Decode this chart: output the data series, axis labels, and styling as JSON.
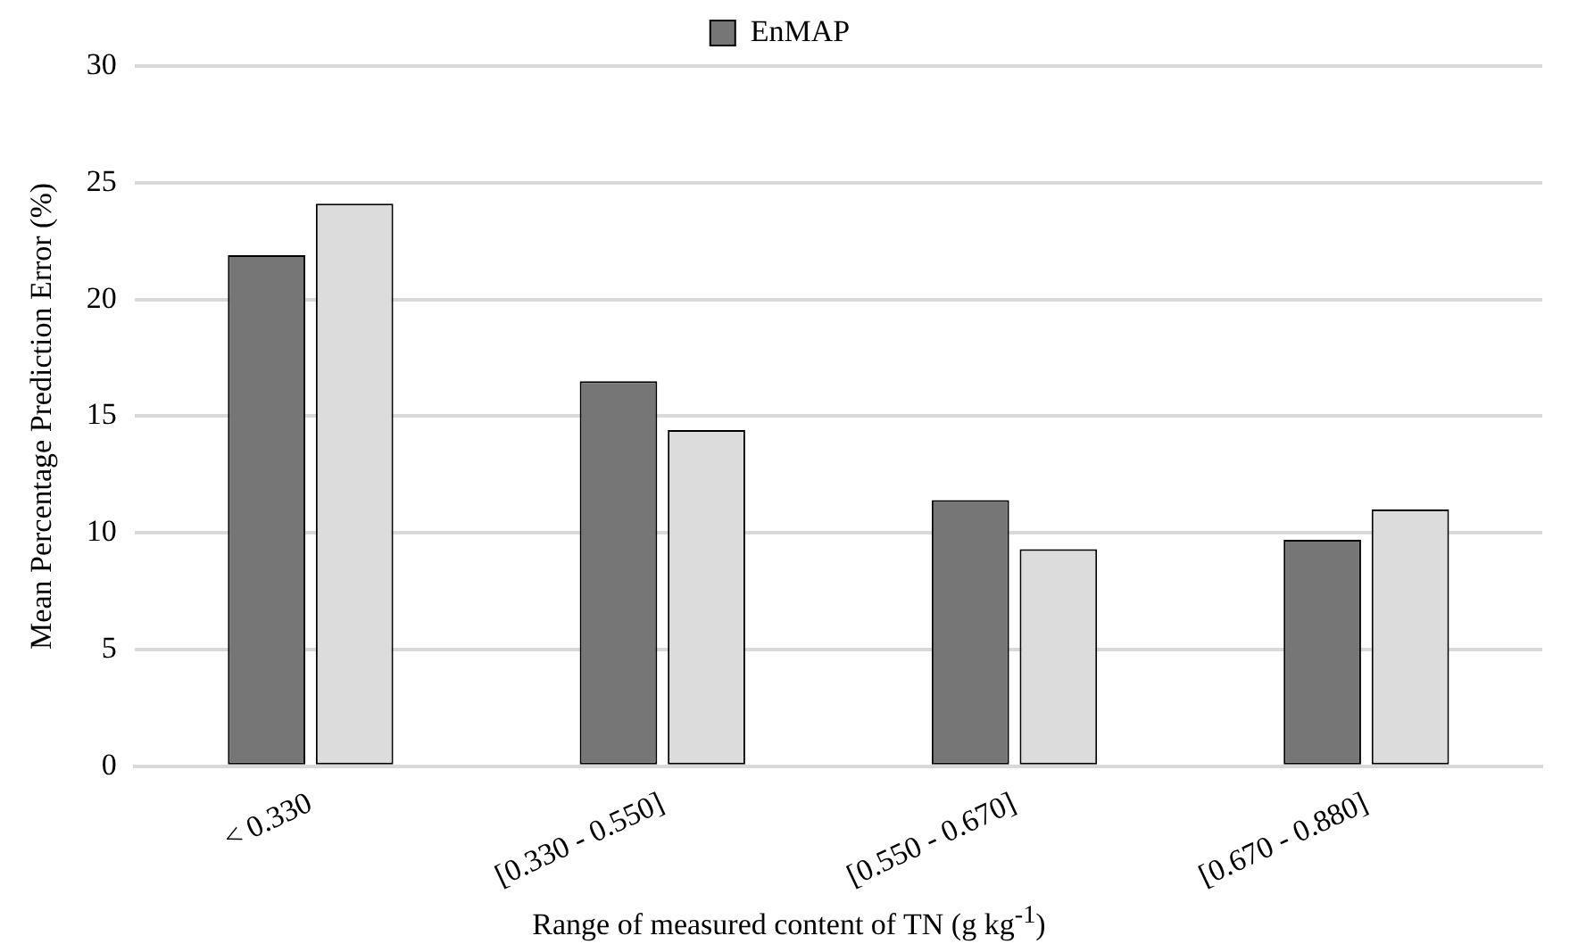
{
  "chart_data": {
    "type": "bar",
    "xlabel": "Range of measured content of TN (g kg$^{-1}$)",
    "ylabel": "Mean Percentage Prediction Error (%)",
    "categories": [
      "< 0.330",
      "[0.330 - 0.550]",
      "[0.550 - 0.670]",
      "[0.670 - 0.880]"
    ],
    "series": [
      {
        "name": "EnMAP",
        "color": "#767676",
        "values": [
          21.9,
          16.5,
          11.4,
          9.7
        ]
      },
      {
        "color": "#dcdcdc",
        "values": [
          24.1,
          14.4,
          9.3,
          11.0
        ]
      }
    ],
    "ylim": [
      0,
      30
    ],
    "yticks": [
      0,
      5,
      10,
      15,
      20,
      25,
      30
    ],
    "grid": "y",
    "legend": "top"
  }
}
